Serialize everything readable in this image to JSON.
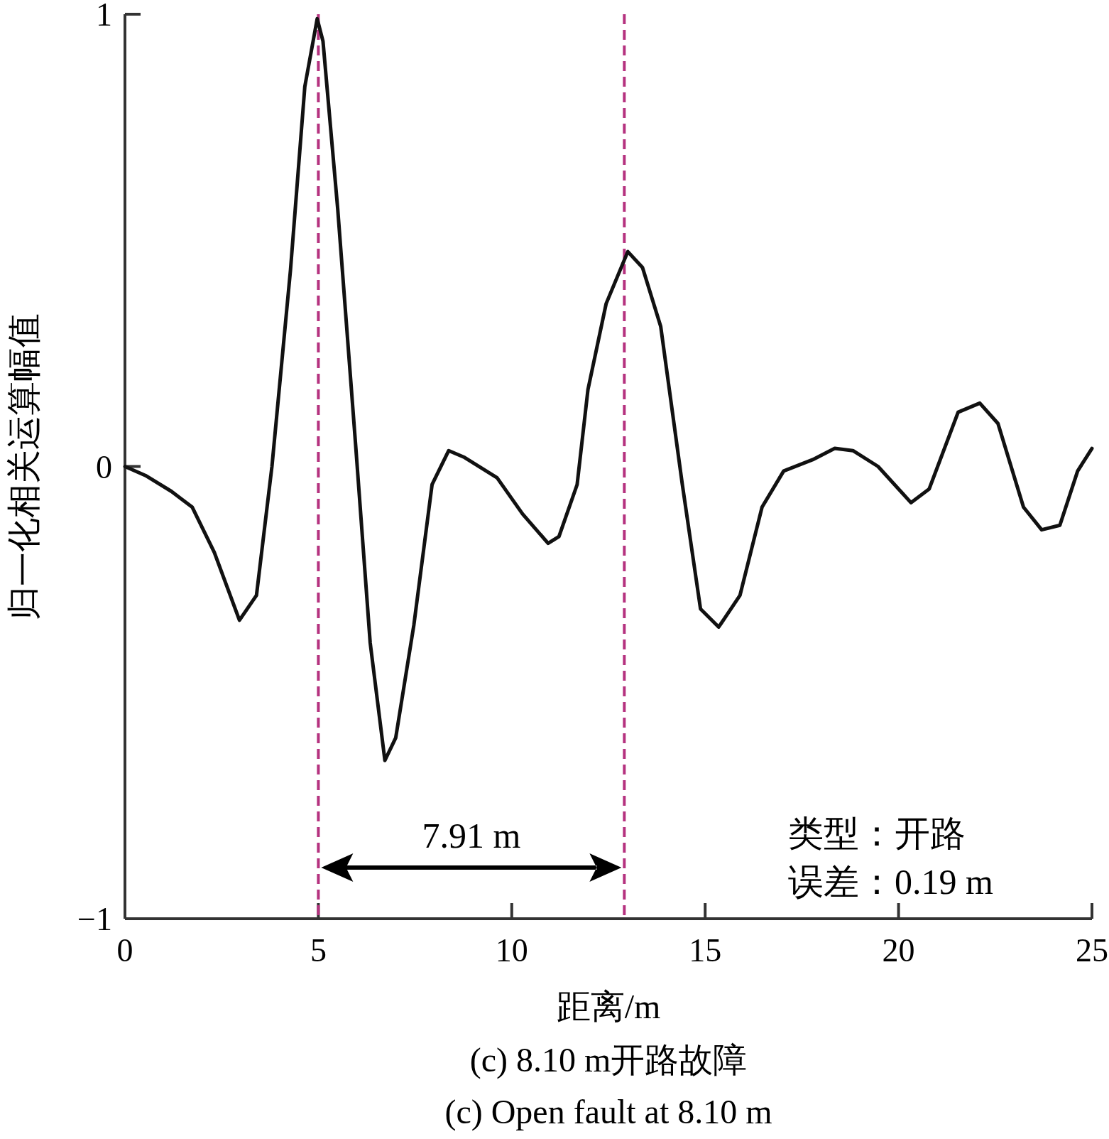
{
  "chart_data": {
    "type": "line",
    "title": "(c) 8.10 m开路故障",
    "subtitle": "(c) Open fault at 8.10 m",
    "xlabel": "距离/m",
    "ylabel": "归一化相关运算幅值",
    "xlim": [
      0,
      25
    ],
    "xticks": [
      0,
      5,
      10,
      15,
      20,
      25
    ],
    "ylim": [
      -1,
      1
    ],
    "yticks": [
      {
        "value": -1,
        "label": "−1"
      },
      0,
      1
    ],
    "grid": false,
    "marker": "none",
    "line_style": "solid",
    "series": [
      {
        "color": "#111111",
        "x": [
          0,
          0.53,
          1.2,
          1.74,
          2.31,
          2.96,
          3.4,
          3.8,
          4.28,
          4.65,
          4.97,
          5.12,
          5.5,
          5.97,
          6.34,
          6.72,
          7.0,
          7.47,
          7.94,
          8.37,
          8.78,
          9.62,
          10.28,
          10.94,
          11.22,
          11.69,
          11.97,
          12.44,
          13.0,
          13.38,
          13.85,
          14.41,
          14.88,
          15.35,
          15.9,
          16.47,
          17.03,
          17.78,
          18.35,
          18.82,
          19.47,
          20.32,
          20.79,
          21.54,
          22.1,
          22.57,
          23.23,
          23.7,
          24.17,
          24.63,
          25.0
        ],
        "values": [
          0.0,
          -0.02,
          -0.055,
          -0.09,
          -0.19,
          -0.34,
          -0.285,
          0.0,
          0.435,
          0.84,
          0.99,
          0.94,
          0.57,
          0.04,
          -0.39,
          -0.65,
          -0.6,
          -0.35,
          -0.04,
          0.035,
          0.02,
          -0.025,
          -0.105,
          -0.17,
          -0.155,
          -0.04,
          0.17,
          0.36,
          0.475,
          0.44,
          0.31,
          -0.04,
          -0.315,
          -0.355,
          -0.285,
          -0.09,
          -0.01,
          0.015,
          0.04,
          0.035,
          0.0,
          -0.08,
          -0.05,
          0.12,
          0.14,
          0.095,
          -0.09,
          -0.14,
          -0.13,
          -0.01,
          0.04
        ]
      }
    ],
    "ref_lines": [
      {
        "axis": "x",
        "value": 5,
        "color": "#b5327f",
        "line_style": "dashed"
      },
      {
        "axis": "x",
        "value": 12.91,
        "color": "#b5327f",
        "line_style": "dashed"
      }
    ],
    "annotations": [
      "7.91 m",
      "类型：开路",
      "误差：0.19 m"
    ]
  }
}
